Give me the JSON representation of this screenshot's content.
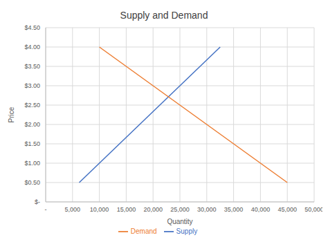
{
  "chart_data": {
    "type": "line",
    "title": "Supply and Demand",
    "x_label": "Quantity",
    "y_label": "Price",
    "series": [
      {
        "name": "Supply",
        "color": "#4472c4",
        "x": [
          6250,
          32500
        ],
        "values": [
          0.5,
          4.0
        ]
      },
      {
        "name": "Demand",
        "color": "#ed7d31",
        "x": [
          10000,
          45000
        ],
        "values": [
          4.0,
          0.5
        ]
      }
    ],
    "xlim": [
      0,
      50000
    ],
    "xticks": [
      {
        "value": 0,
        "label": "-"
      },
      {
        "value": 5000,
        "label": "5,000"
      },
      {
        "value": 10000,
        "label": "10,000"
      },
      {
        "value": 15000,
        "label": "15,000"
      },
      {
        "value": 20000,
        "label": "20,000"
      },
      {
        "value": 25000,
        "label": "25,000"
      },
      {
        "value": 30000,
        "label": "30,000"
      },
      {
        "value": 35000,
        "label": "35,000"
      },
      {
        "value": 40000,
        "label": "40,000"
      },
      {
        "value": 45000,
        "label": "45,000"
      },
      {
        "value": 50000,
        "label": "50,000"
      }
    ],
    "ylim": [
      0,
      4.5
    ],
    "yticks": [
      {
        "value": 0,
        "label": "$-"
      },
      {
        "value": 0.5,
        "label": "$0.50"
      },
      {
        "value": 1,
        "label": "$1.00"
      },
      {
        "value": 1.5,
        "label": "$1.50"
      },
      {
        "value": 2,
        "label": "$2.00"
      },
      {
        "value": 2.5,
        "label": "$2.50"
      },
      {
        "value": 3,
        "label": "$3.00"
      },
      {
        "value": 3.5,
        "label": "$3.50"
      },
      {
        "value": 4,
        "label": "$4.00"
      },
      {
        "value": 4.5,
        "label": "$4.50"
      }
    ],
    "grid": true,
    "legend": "bottom"
  }
}
